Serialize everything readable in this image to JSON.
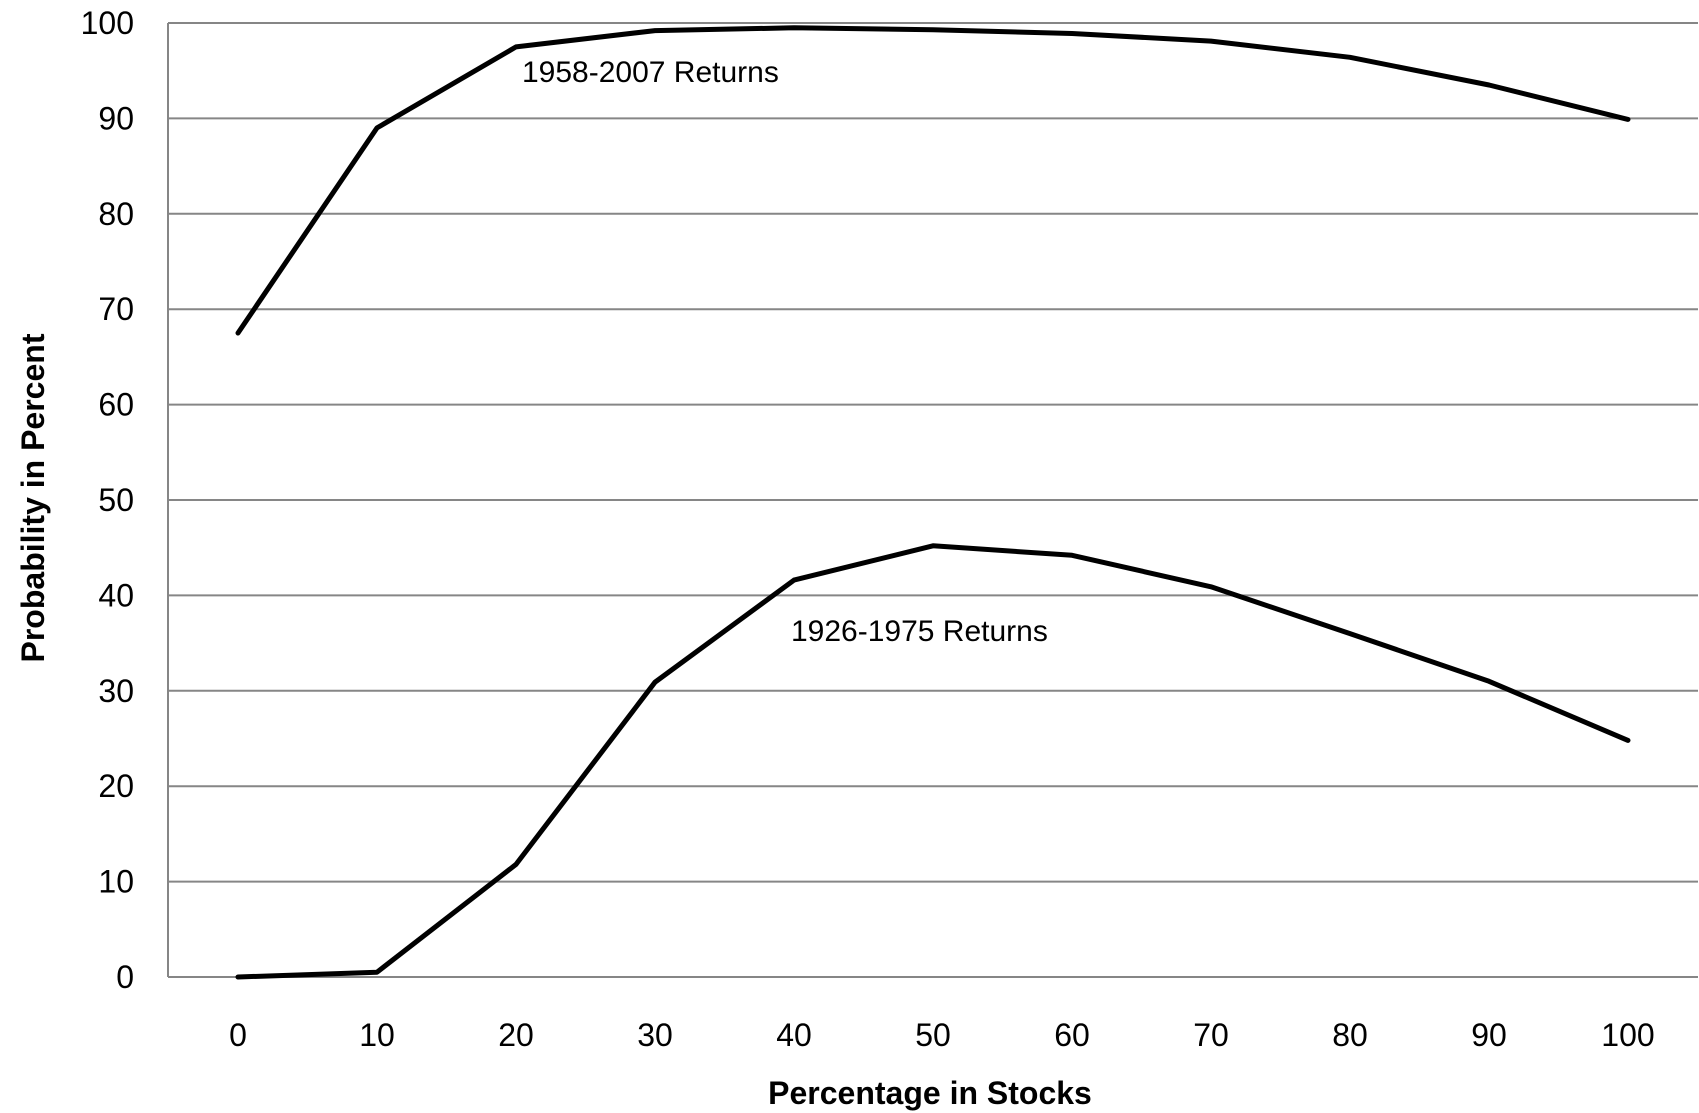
{
  "chart_data": {
    "type": "line",
    "title": "",
    "xlabel": "Percentage in Stocks",
    "ylabel": "Probability  in Percent",
    "x": [
      0,
      10,
      20,
      30,
      40,
      50,
      60,
      70,
      80,
      90,
      100
    ],
    "xlim": [
      0,
      100
    ],
    "ylim": [
      0,
      100
    ],
    "x_ticks": [
      0,
      10,
      20,
      30,
      40,
      50,
      60,
      70,
      80,
      90,
      100
    ],
    "y_ticks": [
      0,
      10,
      20,
      30,
      40,
      50,
      60,
      70,
      80,
      90,
      100
    ],
    "grid": "horizontal",
    "legend": "none",
    "line_color": "#000000",
    "grid_color": "#868686",
    "series": [
      {
        "name": "1958-2007 Returns",
        "values": [
          67.5,
          89.0,
          97.5,
          99.2,
          99.5,
          99.3,
          98.9,
          98.1,
          96.4,
          93.5,
          89.9
        ]
      },
      {
        "name": "1926-1975 Returns",
        "values": [
          0.0,
          0.5,
          11.8,
          30.9,
          41.6,
          45.2,
          44.2,
          40.9,
          36.0,
          31.0,
          24.8
        ]
      }
    ],
    "annotations": [
      {
        "text": "1958-2007 Returns",
        "series": 0
      },
      {
        "text": "1926-1975 Returns",
        "series": 1
      }
    ]
  }
}
